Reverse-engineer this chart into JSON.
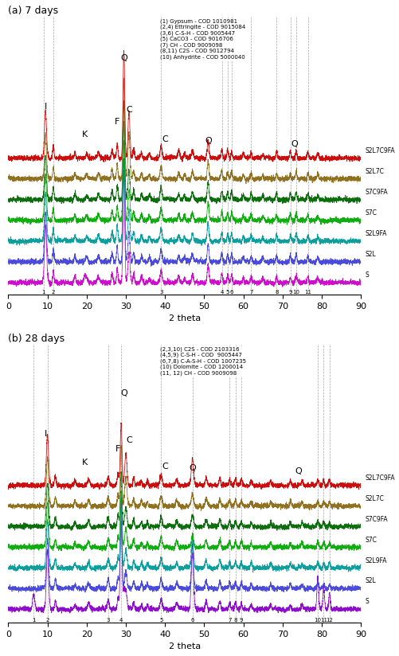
{
  "panel_a": {
    "title": "(a) 7 days",
    "legend_lines": [
      "(1) Gypsum - COD 1010981",
      "(2,4) Ettringite - COD 9015084",
      "(3,6) C-S-H - COD 9005447",
      "(5) CaCO3 - COD 9016706",
      "(7) CH - COD 9009098",
      "(8,11) C2S - COD 9012794",
      "(10) Anhydrite - COD 5000040"
    ],
    "series_labels": [
      "S",
      "S2L",
      "S2L9FA",
      "S7C",
      "S7C9FA",
      "S2L7C",
      "S2L7C9FA"
    ],
    "series_colors": [
      "#cc00cc",
      "#4040dd",
      "#009999",
      "#00aa00",
      "#006600",
      "#8b6914",
      "#cc0000"
    ],
    "offsets": [
      0.0,
      0.14,
      0.28,
      0.42,
      0.56,
      0.7,
      0.84
    ],
    "dashed_x": [
      9.0,
      11.5,
      39.0,
      54.5,
      56.0,
      57.0,
      62.0,
      68.5,
      72.0,
      73.5,
      76.5
    ],
    "dashed_labels": [
      "1",
      "2",
      "3",
      "4",
      "5",
      "6",
      "7",
      "8",
      "9",
      "10",
      "11"
    ],
    "ann": [
      [
        29.5,
        "Q"
      ],
      [
        9.5,
        "I"
      ],
      [
        19.5,
        "K"
      ],
      [
        27.8,
        "F"
      ],
      [
        30.8,
        "C"
      ],
      [
        40.0,
        "C"
      ],
      [
        51.0,
        "Q"
      ],
      [
        73.0,
        "Q"
      ]
    ],
    "xlabel": "2 theta"
  },
  "panel_b": {
    "title": "(b) 28 days",
    "legend_lines": [
      "(2,3,10) C2S - COD 2103316",
      "(4,5,9) C-S-H - COD  9005447",
      "(6,7,8) C-A-S-H - COD 1007235",
      "(10) Dolomite - COD 1200014",
      "(11, 12) CH - COD 9009098"
    ],
    "series_labels": [
      "S",
      "S2L",
      "S2L9FA",
      "S7C",
      "S7C9FA",
      "S2L7C",
      "S2L7C9FA"
    ],
    "series_colors": [
      "#8800cc",
      "#4040dd",
      "#009999",
      "#00aa00",
      "#006600",
      "#8b6914",
      "#cc0000"
    ],
    "offsets": [
      0.0,
      0.14,
      0.28,
      0.42,
      0.56,
      0.7,
      0.84
    ],
    "dashed_x": [
      6.5,
      10.0,
      25.5,
      28.8,
      39.0,
      47.0,
      56.5,
      58.0,
      59.5,
      79.0,
      80.5,
      82.0
    ],
    "dashed_labels": [
      "1",
      "2",
      "3",
      "4",
      "5",
      "6",
      "7",
      "8",
      "9",
      "10",
      "11",
      "12"
    ],
    "ann": [
      [
        29.5,
        "Q"
      ],
      [
        9.5,
        "I"
      ],
      [
        19.5,
        "K"
      ],
      [
        28.0,
        "F"
      ],
      [
        30.8,
        "C"
      ],
      [
        40.0,
        "C"
      ],
      [
        47.0,
        "Q"
      ],
      [
        74.0,
        "Q"
      ]
    ],
    "xlabel": "2 theta"
  }
}
